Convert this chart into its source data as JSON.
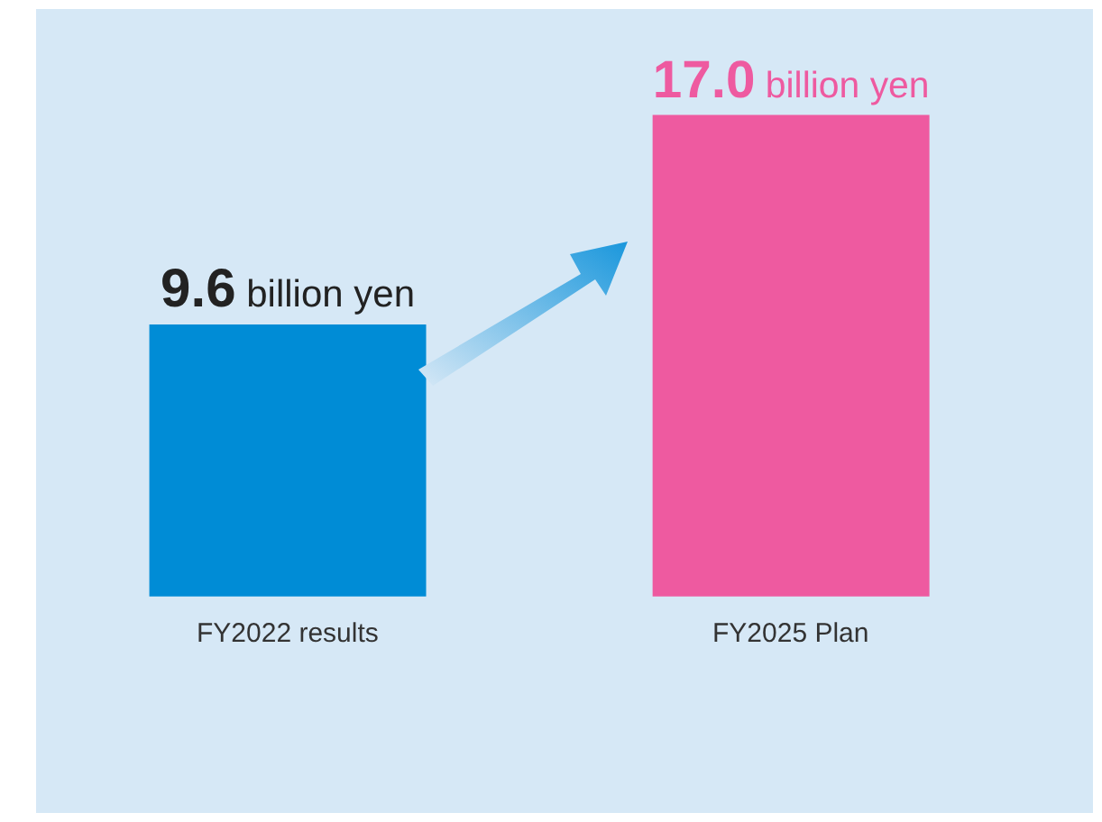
{
  "chart_data": {
    "type": "bar",
    "categories": [
      "FY2022 results",
      "FY2025 Plan"
    ],
    "values": [
      9.6,
      17.0
    ],
    "colors": [
      "#008cd6",
      "#ee5aa0"
    ],
    "value_labels": [
      "9.6 billion yen",
      "17.0 billion yen"
    ],
    "grid": false,
    "legend": false
  }
}
